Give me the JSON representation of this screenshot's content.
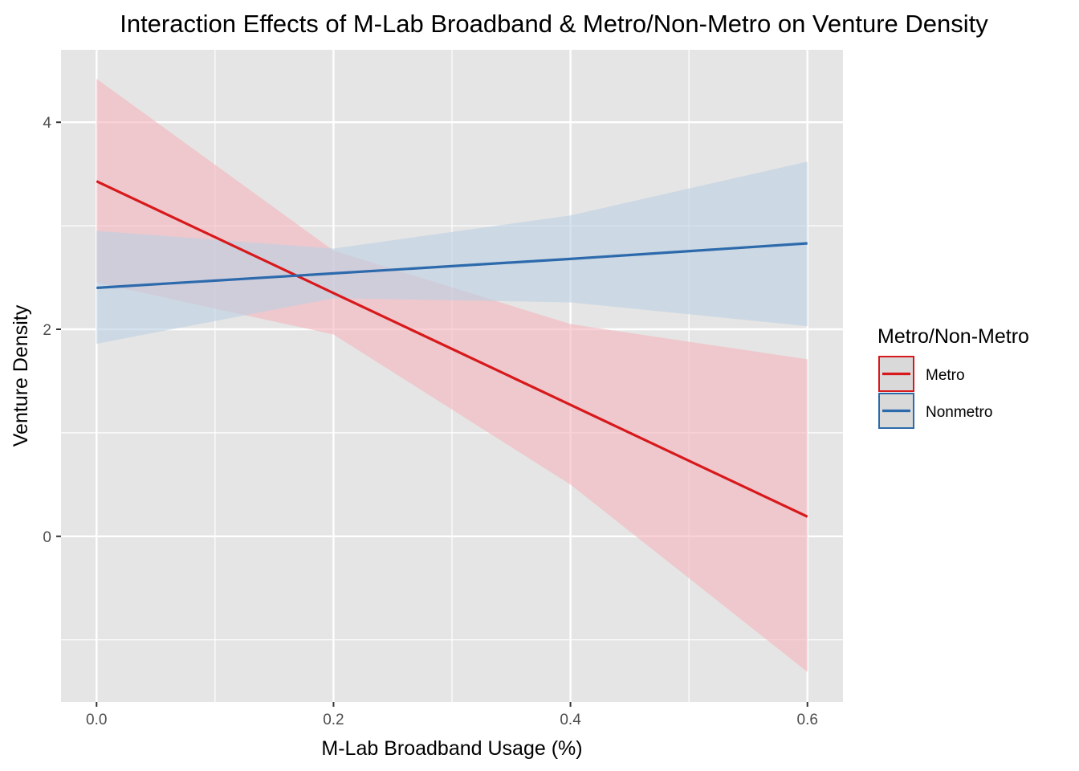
{
  "chart_data": {
    "type": "line",
    "title": "Interaction Effects of M-Lab Broadband & Metro/Non-Metro on Venture Density",
    "xlabel": "M-Lab Broadband Usage (%)",
    "ylabel": "Venture Density",
    "xlim": [
      -0.03,
      0.63
    ],
    "ylim": [
      -1.6,
      4.7
    ],
    "x_ticks": [
      0.0,
      0.2,
      0.4,
      0.6
    ],
    "x_tick_labels": [
      "0.0",
      "0.2",
      "0.4",
      "0.6"
    ],
    "y_ticks": [
      0,
      2,
      4
    ],
    "y_tick_labels": [
      "0",
      "2",
      "4"
    ],
    "x_minor_ticks": [
      0.1,
      0.3,
      0.5
    ],
    "y_minor_ticks": [
      -1,
      1,
      3
    ],
    "grid": true,
    "legend": {
      "title": "Metro/Non-Metro",
      "position": "right"
    },
    "x": [
      0.0,
      0.2,
      0.4,
      0.6
    ],
    "series": [
      {
        "name": "Metro",
        "color": "#d7191c",
        "fill": "#f4b6bd",
        "values": [
          3.43,
          2.35,
          1.27,
          0.19
        ],
        "lower": [
          2.45,
          1.95,
          0.5,
          -1.31
        ],
        "upper": [
          4.42,
          2.76,
          2.05,
          1.71
        ]
      },
      {
        "name": "Nonmetro",
        "color": "#2c6aac",
        "fill": "#bdd0e4",
        "values": [
          2.4,
          2.54,
          2.68,
          2.83
        ],
        "lower": [
          1.86,
          2.3,
          2.26,
          2.03
        ],
        "upper": [
          2.95,
          2.78,
          3.1,
          3.62
        ]
      }
    ]
  }
}
